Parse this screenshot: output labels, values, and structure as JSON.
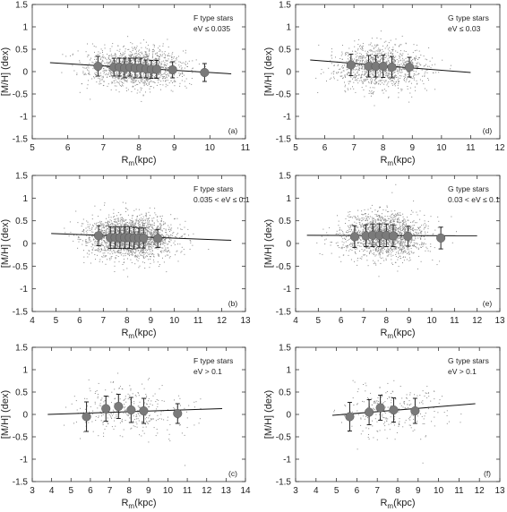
{
  "chart_data": [
    {
      "type": "scatter",
      "panel": "a",
      "annotation_line1": "F type stars",
      "annotation_line2": "eV ≤ 0.035",
      "panel_label": "(a)",
      "xlabel": "Rm(kpc)",
      "ylabel": "[M/H] (dex)",
      "xlim": [
        5,
        11
      ],
      "xticks": [
        "5",
        "6",
        "7",
        "8",
        "9",
        "10",
        "11"
      ],
      "ylim": [
        -1.5,
        1.5
      ],
      "yticks": [
        "-1.5",
        "-1",
        "-0.5",
        "0",
        "0.5",
        "1",
        "1.5"
      ],
      "cloud": {
        "x_min": 5.5,
        "x_max": 10.6,
        "x_center": 7.9,
        "x_sd": 0.65,
        "y_center": 0.08,
        "y_sd": 0.22,
        "count": 1400
      },
      "fit_line": {
        "x": [
          5.5,
          10.6
        ],
        "y": [
          0.2,
          -0.05
        ]
      },
      "binned_means": [
        {
          "x": 6.85,
          "y": 0.12,
          "err": 0.22
        },
        {
          "x": 7.3,
          "y": 0.1,
          "err": 0.2
        },
        {
          "x": 7.45,
          "y": 0.1,
          "err": 0.2
        },
        {
          "x": 7.6,
          "y": 0.08,
          "err": 0.22
        },
        {
          "x": 7.75,
          "y": 0.1,
          "err": 0.2
        },
        {
          "x": 7.9,
          "y": 0.08,
          "err": 0.22
        },
        {
          "x": 8.05,
          "y": 0.08,
          "err": 0.22
        },
        {
          "x": 8.2,
          "y": 0.06,
          "err": 0.2
        },
        {
          "x": 8.35,
          "y": 0.05,
          "err": 0.2
        },
        {
          "x": 8.5,
          "y": 0.05,
          "err": 0.2
        },
        {
          "x": 8.95,
          "y": 0.04,
          "err": 0.18
        },
        {
          "x": 9.85,
          "y": -0.02,
          "err": 0.2
        }
      ]
    },
    {
      "type": "scatter",
      "panel": "d",
      "annotation_line1": "G type stars",
      "annotation_line2": "eV ≤ 0.03",
      "panel_label": "(d)",
      "xlabel": "Rm(kpc)",
      "ylabel": "[M/H] (dex)",
      "xlim": [
        5,
        12
      ],
      "xticks": [
        "5",
        "6",
        "7",
        "8",
        "9",
        "10",
        "11",
        "12"
      ],
      "ylim": [
        -1.5,
        1.5
      ],
      "yticks": [
        "-1.5",
        "-1",
        "-0.5",
        "0",
        "0.5",
        "1",
        "1.5"
      ],
      "cloud": {
        "x_min": 5.5,
        "x_max": 11.0,
        "x_center": 7.9,
        "x_sd": 0.75,
        "y_center": 0.08,
        "y_sd": 0.24,
        "count": 1100
      },
      "fit_line": {
        "x": [
          5.5,
          11.0
        ],
        "y": [
          0.26,
          -0.02
        ]
      },
      "binned_means": [
        {
          "x": 6.9,
          "y": 0.15,
          "err": 0.24
        },
        {
          "x": 7.5,
          "y": 0.12,
          "err": 0.24
        },
        {
          "x": 7.75,
          "y": 0.12,
          "err": 0.24
        },
        {
          "x": 8.0,
          "y": 0.12,
          "err": 0.25
        },
        {
          "x": 8.3,
          "y": 0.1,
          "err": 0.24
        },
        {
          "x": 8.9,
          "y": 0.1,
          "err": 0.22
        }
      ]
    },
    {
      "type": "scatter",
      "panel": "b",
      "annotation_line1": "F type stars",
      "annotation_line2": "0.035 < eV ≤ 0.1",
      "panel_label": "(b)",
      "xlabel": "Rm(kpc)",
      "ylabel": "[M/H] (dex)",
      "xlim": [
        4,
        13
      ],
      "xticks": [
        "4",
        "5",
        "6",
        "7",
        "8",
        "9",
        "10",
        "11",
        "12",
        "13"
      ],
      "ylim": [
        -1.5,
        1.5
      ],
      "yticks": [
        "-1.5",
        "-1",
        "-0.5",
        "0",
        "0.5",
        "1",
        "1.5"
      ],
      "cloud": {
        "x_min": 4.6,
        "x_max": 12.2,
        "x_center": 8.1,
        "x_sd": 0.9,
        "y_center": 0.13,
        "y_sd": 0.22,
        "count": 2200
      },
      "fit_line": {
        "x": [
          4.8,
          12.4
        ],
        "y": [
          0.22,
          0.07
        ]
      },
      "binned_means": [
        {
          "x": 6.8,
          "y": 0.17,
          "err": 0.22
        },
        {
          "x": 7.3,
          "y": 0.13,
          "err": 0.24
        },
        {
          "x": 7.5,
          "y": 0.13,
          "err": 0.24
        },
        {
          "x": 7.7,
          "y": 0.13,
          "err": 0.24
        },
        {
          "x": 7.9,
          "y": 0.13,
          "err": 0.24
        },
        {
          "x": 8.1,
          "y": 0.13,
          "err": 0.24
        },
        {
          "x": 8.3,
          "y": 0.12,
          "err": 0.24
        },
        {
          "x": 8.5,
          "y": 0.12,
          "err": 0.22
        },
        {
          "x": 8.7,
          "y": 0.12,
          "err": 0.22
        },
        {
          "x": 9.3,
          "y": 0.11,
          "err": 0.2
        }
      ]
    },
    {
      "type": "scatter",
      "panel": "e",
      "annotation_line1": "G type stars",
      "annotation_line2": "0.03 < eV ≤ 0.1",
      "panel_label": "(e)",
      "xlabel": "Rm(kpc)",
      "ylabel": "[M/H] (dex)",
      "xlim": [
        4,
        13
      ],
      "xticks": [
        "4",
        "5",
        "6",
        "7",
        "8",
        "9",
        "10",
        "11",
        "12",
        "13"
      ],
      "ylim": [
        -1.5,
        1.5
      ],
      "yticks": [
        "-1.5",
        "-1",
        "-0.5",
        "0",
        "0.5",
        "1",
        "1.5"
      ],
      "cloud": {
        "x_min": 4.6,
        "x_max": 12.0,
        "x_center": 7.9,
        "x_sd": 0.95,
        "y_center": 0.16,
        "y_sd": 0.24,
        "count": 1700
      },
      "fit_line": {
        "x": [
          4.5,
          12.0
        ],
        "y": [
          0.18,
          0.17
        ]
      },
      "binned_means": [
        {
          "x": 6.6,
          "y": 0.15,
          "err": 0.24
        },
        {
          "x": 7.1,
          "y": 0.17,
          "err": 0.24
        },
        {
          "x": 7.4,
          "y": 0.18,
          "err": 0.25
        },
        {
          "x": 7.7,
          "y": 0.18,
          "err": 0.25
        },
        {
          "x": 8.0,
          "y": 0.18,
          "err": 0.25
        },
        {
          "x": 8.3,
          "y": 0.17,
          "err": 0.24
        },
        {
          "x": 8.95,
          "y": 0.16,
          "err": 0.22
        },
        {
          "x": 10.4,
          "y": 0.12,
          "err": 0.24
        }
      ]
    },
    {
      "type": "scatter",
      "panel": "c",
      "annotation_line1": "F type stars",
      "annotation_line2": "eV > 0.1",
      "panel_label": "(c)",
      "xlabel": "Rm(kpc)",
      "ylabel": "[M/H] (dex)",
      "xlim": [
        3,
        14
      ],
      "xticks": [
        "3",
        "4",
        "5",
        "6",
        "7",
        "8",
        "9",
        "10",
        "11",
        "12",
        "13",
        "14"
      ],
      "ylim": [
        -1.5,
        1.5
      ],
      "yticks": [
        "-1.5",
        "-1",
        "-0.5",
        "0",
        "0.5",
        "1",
        "1.5"
      ],
      "cloud": {
        "x_min": 4.0,
        "x_max": 12.8,
        "x_center": 8.0,
        "x_sd": 1.5,
        "y_center": 0.08,
        "y_sd": 0.28,
        "count": 330
      },
      "fit_line": {
        "x": [
          3.8,
          12.8
        ],
        "y": [
          0.0,
          0.13
        ]
      },
      "binned_means": [
        {
          "x": 5.8,
          "y": -0.05,
          "err": 0.33
        },
        {
          "x": 6.8,
          "y": 0.13,
          "err": 0.28
        },
        {
          "x": 7.45,
          "y": 0.18,
          "err": 0.27
        },
        {
          "x": 8.1,
          "y": 0.1,
          "err": 0.28
        },
        {
          "x": 8.75,
          "y": 0.08,
          "err": 0.28
        },
        {
          "x": 10.5,
          "y": 0.02,
          "err": 0.22
        }
      ]
    },
    {
      "type": "scatter",
      "panel": "f",
      "annotation_line1": "G type stars",
      "annotation_line2": "eV > 0.1",
      "panel_label": "(f)",
      "xlabel": "Rm(kpc)",
      "ylabel": "[M/H] (dex)",
      "xlim": [
        3,
        13
      ],
      "xticks": [
        "3",
        "4",
        "5",
        "6",
        "7",
        "8",
        "9",
        "10",
        "11",
        "12",
        "13"
      ],
      "ylim": [
        -1.5,
        1.5
      ],
      "yticks": [
        "-1.5",
        "-1",
        "-0.5",
        "0",
        "0.5",
        "1",
        "1.5"
      ],
      "cloud": {
        "x_min": 4.8,
        "x_max": 11.8,
        "x_center": 7.6,
        "x_sd": 1.3,
        "y_center": 0.08,
        "y_sd": 0.28,
        "count": 280
      },
      "fit_line": {
        "x": [
          4.8,
          11.8
        ],
        "y": [
          -0.02,
          0.24
        ]
      },
      "binned_means": [
        {
          "x": 5.65,
          "y": -0.05,
          "err": 0.32
        },
        {
          "x": 6.6,
          "y": 0.05,
          "err": 0.28
        },
        {
          "x": 7.15,
          "y": 0.15,
          "err": 0.28
        },
        {
          "x": 7.8,
          "y": 0.1,
          "err": 0.27
        },
        {
          "x": 8.85,
          "y": 0.08,
          "err": 0.28
        }
      ]
    }
  ],
  "colors": {
    "dots": "#8a8a8a",
    "marker": "#7a7a7a",
    "axis": "#333333",
    "line": "#111111"
  }
}
